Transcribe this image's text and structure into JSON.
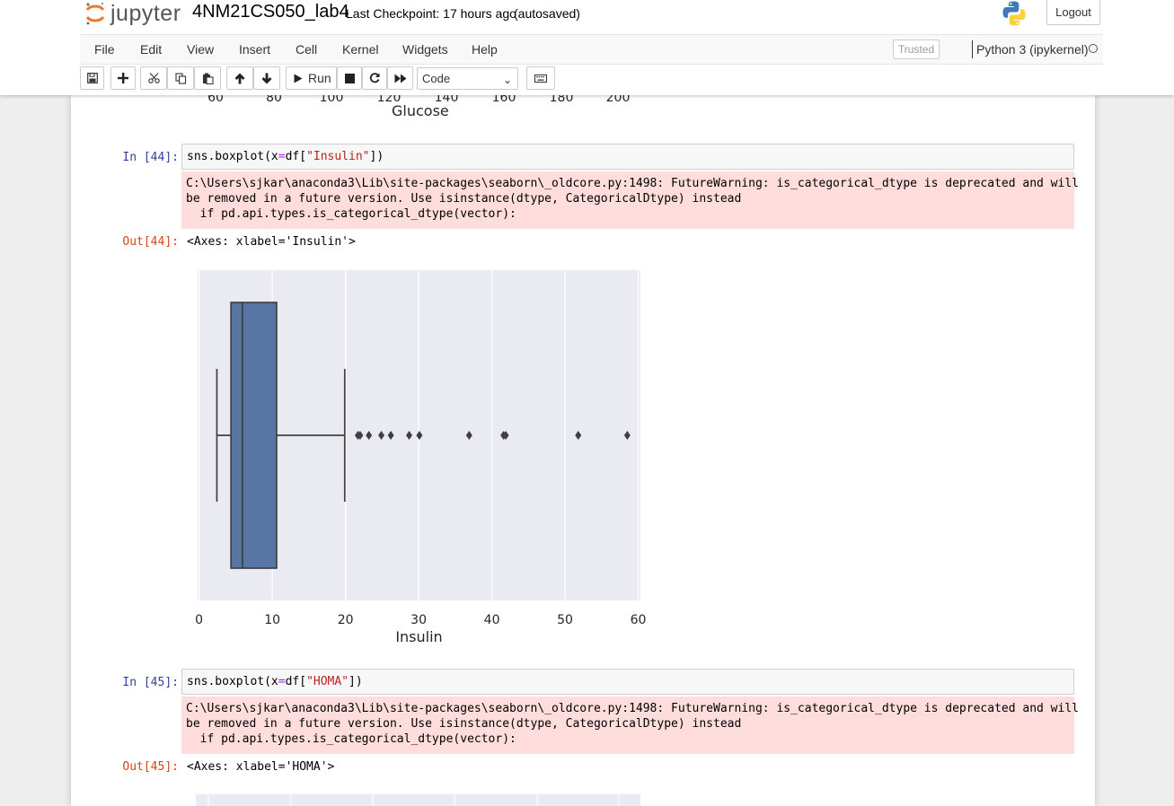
{
  "header": {
    "logo_text": "jupyter",
    "notebook_name": "4NM21CS050_lab4",
    "checkpoint": "Last Checkpoint: 17 hours ago",
    "autosave": "(autosaved)",
    "logout_label": "Logout"
  },
  "menu": {
    "items": [
      "File",
      "Edit",
      "View",
      "Insert",
      "Cell",
      "Kernel",
      "Widgets",
      "Help"
    ],
    "trusted": "Trusted",
    "kernel": "Python 3 (ipykernel)"
  },
  "toolbar": {
    "run_label": "Run",
    "cell_type": "Code",
    "icons": [
      "save-icon",
      "plus-icon",
      "cut-icon",
      "copy-icon",
      "paste-icon",
      "arrow-up-icon",
      "arrow-down-icon",
      "play-icon",
      "stop-icon",
      "restart-icon",
      "fast-forward-icon",
      "keyboard-icon"
    ]
  },
  "prev_output": {
    "tick_labels": [
      "60",
      "80",
      "100",
      "120",
      "140",
      "160",
      "180",
      "200"
    ],
    "xlabel": "Glucose"
  },
  "cells": [
    {
      "in_prompt": "In [44]:",
      "code_prefix": "sns.boxplot(x",
      "code_eq": "=",
      "code_mid": "df[",
      "code_str": "\"Insulin\"",
      "code_suffix": "])",
      "stderr": "C:\\Users\\sjkar\\anaconda3\\Lib\\site-packages\\seaborn\\_oldcore.py:1498: FutureWarning: is_categorical_dtype is deprecated and will\nbe removed in a future version. Use isinstance(dtype, CategoricalDtype) instead\n  if pd.api.types.is_categorical_dtype(vector):",
      "out_prompt": "Out[44]:",
      "out_text": "<Axes: xlabel='Insulin'>"
    },
    {
      "in_prompt": "In [45]:",
      "code_prefix": "sns.boxplot(x",
      "code_eq": "=",
      "code_mid": "df[",
      "code_str": "\"HOMA\"",
      "code_suffix": "])",
      "stderr": "C:\\Users\\sjkar\\anaconda3\\Lib\\site-packages\\seaborn\\_oldcore.py:1498: FutureWarning: is_categorical_dtype is deprecated and will\nbe removed in a future version. Use isinstance(dtype, CategoricalDtype) instead\n  if pd.api.types.is_categorical_dtype(vector):",
      "out_prompt": "Out[45]:",
      "out_text": "<Axes: xlabel='HOMA'>"
    }
  ],
  "chart_data": {
    "type": "box",
    "xlabel": "Insulin",
    "xlim": [
      -0.2,
      60.3
    ],
    "ticks": [
      0,
      10,
      20,
      30,
      40,
      50,
      60
    ],
    "tick_labels": [
      "0",
      "10",
      "20",
      "30",
      "40",
      "50",
      "60"
    ],
    "grid": true,
    "box": {
      "whisker_low": 2.43,
      "q1": 4.36,
      "median": 5.92,
      "q3": 10.59,
      "whisker_high": 19.9
    },
    "outliers": [
      21.7,
      22.0,
      23.2,
      24.9,
      26.2,
      28.7,
      30.1,
      36.9,
      41.6,
      41.9,
      51.8,
      58.5
    ],
    "colors": {
      "box": "#5975a4",
      "edge": "#3f3f3f",
      "background": "#eaeaf2",
      "grid": "#ffffff"
    }
  }
}
